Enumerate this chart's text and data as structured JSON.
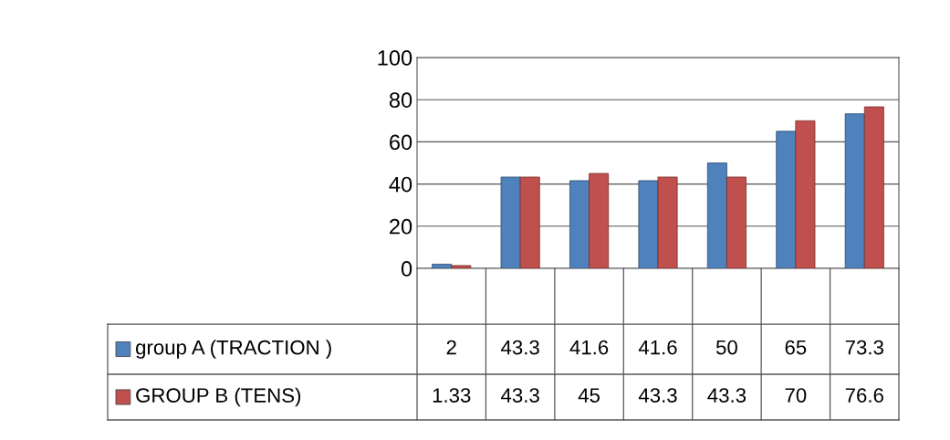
{
  "chart_data": {
    "type": "bar",
    "categories": [
      null,
      null,
      null,
      null,
      null,
      null,
      null
    ],
    "series": [
      {
        "name": "group A (TRACTION )",
        "color": "#4f81bd",
        "values": [
          2,
          43.3,
          41.6,
          41.6,
          50,
          65,
          73.3
        ]
      },
      {
        "name": "GROUP B (TENS)",
        "color": "#c0504d",
        "values": [
          1.33,
          43.3,
          45,
          43.3,
          43.3,
          70,
          76.6
        ]
      }
    ],
    "ylim": [
      0,
      100
    ],
    "yticks": [
      0,
      20,
      40,
      60,
      80,
      100
    ],
    "grid": "y",
    "data_labels": true,
    "legend": "bottom left"
  }
}
